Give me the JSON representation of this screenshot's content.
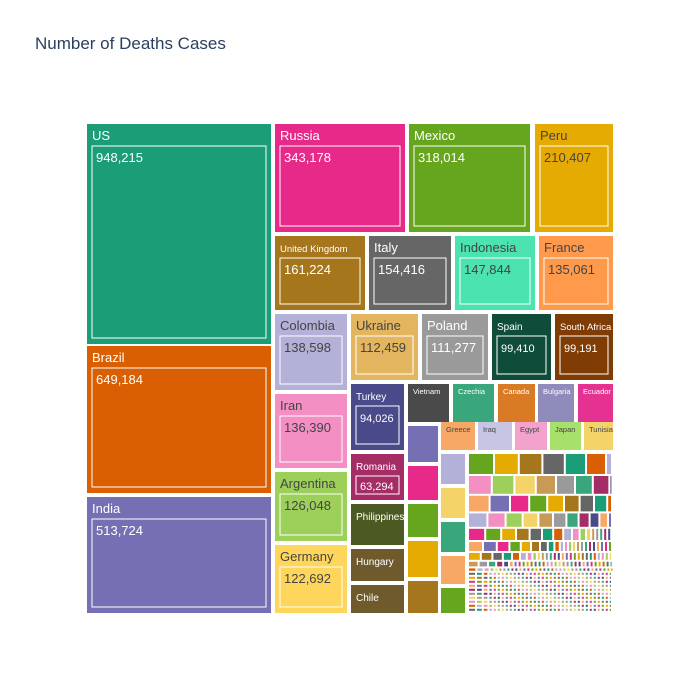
{
  "chart_data": {
    "type": "treemap",
    "title": "Number of Deaths Cases",
    "labels": [
      "US",
      "Russia",
      "Mexico",
      "Peru",
      "Brazil",
      "United Kingdom",
      "Italy",
      "Indonesia",
      "France",
      "Colombia",
      "Ukraine",
      "Poland",
      "Spain",
      "South Africa",
      "India",
      "Iran",
      "Turkey",
      "Vietnam",
      "Czechia",
      "Canada",
      "Bulgaria",
      "Ecuador",
      "Argentina",
      "Romania",
      "Greece",
      "Iraq",
      "Egypt",
      "Japan",
      "Tunisia",
      "Philippines",
      "Germany",
      "Hungary",
      "Chile"
    ],
    "values": [
      948215,
      343178,
      318014,
      210407,
      649184,
      161224,
      154416,
      147844,
      135061,
      138598,
      112459,
      111277,
      99410,
      99191,
      513724,
      136390,
      94026,
      40000,
      38000,
      37000,
      36000,
      35000,
      126048,
      63294,
      28000,
      26000,
      24000,
      22000,
      21000,
      60000,
      122692,
      45000,
      40000
    ],
    "value_labels": [
      "948,215",
      "343,178",
      "318,014",
      "210,407",
      "649,184",
      "161,224",
      "154,416",
      "147,844",
      "135,061",
      "138,598",
      "112,459",
      "111,277",
      "99,410",
      "99,191",
      "513,724",
      "136,390",
      "94,026",
      "",
      "",
      "",
      "",
      "",
      "126,048",
      "63,294",
      "",
      "",
      "",
      "",
      "",
      "",
      "122,692",
      "",
      ""
    ],
    "colors": [
      "#1b9e77",
      "#e7298a",
      "#66a61e",
      "#e6ab02",
      "#d95f02",
      "#a6761d",
      "#666666",
      "#4be3b0",
      "#ff9a4d",
      "#b3b1d8",
      "#e2b55e",
      "#9a9a9a",
      "#0f4d3a",
      "#7f3c05",
      "#7570b3",
      "#f38fc2",
      "#4a4a8a",
      "#4a4a4a",
      "#3aa67c",
      "#d97a25",
      "#8f8bbb",
      "#e5318f",
      "#9dd05a",
      "#a52d66",
      "#f7a866",
      "#c7c5e3",
      "#f3a2cb",
      "#a8e06c",
      "#f4d468",
      "#4b5a22",
      "#ffd65c",
      "#6f5a2e",
      "#6f5a2e"
    ]
  }
}
